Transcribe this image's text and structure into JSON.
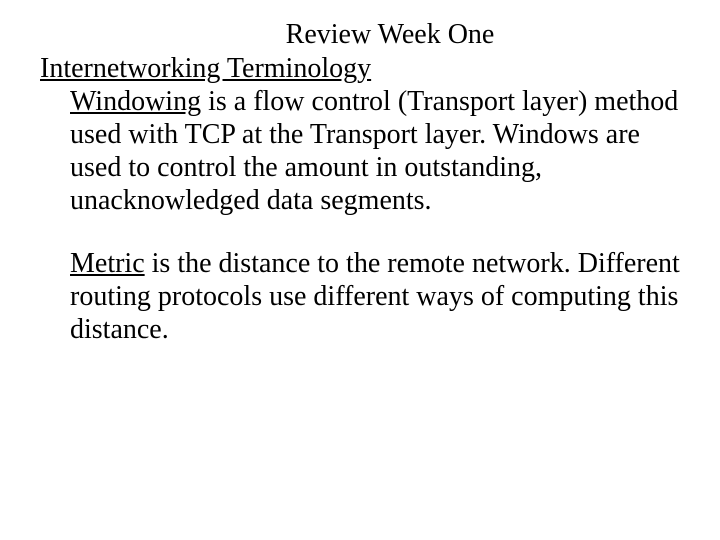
{
  "title": "Review Week One",
  "heading": "Internetworking Terminology",
  "para1": {
    "term": "Windowing",
    "rest": " is a flow control (Transport layer) method used with TCP at the Transport layer. Windows are used to control the amount in outstanding, unacknowledged data segments."
  },
  "para2": {
    "term": "Metric",
    "rest": " is the distance to the remote network. Different routing protocols use different ways of computing this distance."
  },
  "style": {
    "font_family": "Times New Roman",
    "font_size_pt": 21,
    "text_color": "#000000",
    "background_color": "#ffffff"
  }
}
